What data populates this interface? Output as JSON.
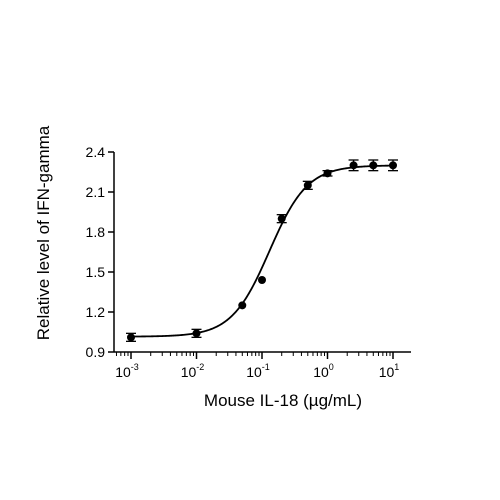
{
  "chart_data": {
    "type": "scatter",
    "title": "",
    "xlabel": "Mouse IL-18 (µg/mL)",
    "ylabel": "Relative level of IFN-gamma",
    "xscale": "log",
    "xlim": [
      0.0005,
      15
    ],
    "ylim": [
      0.9,
      2.4
    ],
    "x_ticks": [
      {
        "base": "10",
        "exp": "-3"
      },
      {
        "base": "10",
        "exp": "-2"
      },
      {
        "base": "10",
        "exp": "-1"
      },
      {
        "base": "10",
        "exp": "0"
      },
      {
        "base": "10",
        "exp": "1"
      }
    ],
    "y_ticks": [
      "0.9",
      "1.2",
      "1.5",
      "1.8",
      "2.1",
      "2.4"
    ],
    "grid": false,
    "legend": "none",
    "fit": "four-parameter logistic curve",
    "series": [
      {
        "x": [
          0.001,
          0.01,
          0.05,
          0.1,
          0.2,
          0.5,
          1,
          2.5,
          5,
          10
        ],
        "y": [
          1.01,
          1.04,
          1.25,
          1.44,
          1.9,
          2.15,
          2.24,
          2.3,
          2.3,
          2.3
        ],
        "error": [
          0.03,
          0.03,
          0.01,
          0.01,
          0.03,
          0.03,
          0.02,
          0.04,
          0.04,
          0.04
        ]
      }
    ],
    "colors": {
      "marker": "#000000",
      "line": "#000000"
    }
  }
}
